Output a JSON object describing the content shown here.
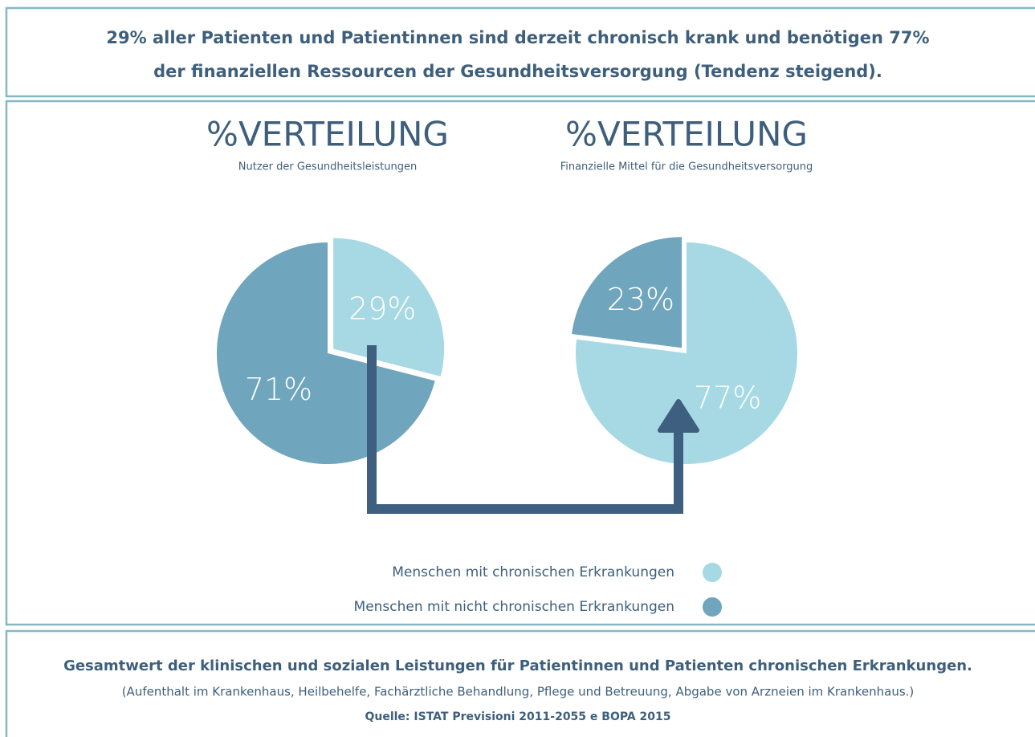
{
  "header": {
    "line1": "29% aller Patienten und Patientinnen sind derzeit chronisch krank und benötigen 77%",
    "line2": "der finanziellen Ressourcen der Gesundheitsversorgung (Tendenz steigend)."
  },
  "chart_data": [
    {
      "type": "pie",
      "title": "%VERTEILUNG",
      "subtitle": "Nutzer der Gesundheitsleistungen",
      "categories": [
        "Menschen mit chronischen Erkrankungen",
        "Menschen mit nicht chronischen Erkrankungen"
      ],
      "values": [
        29,
        71
      ],
      "value_labels": [
        "29%",
        "71%"
      ],
      "colors": [
        "#a6d9e3",
        "#6fa5bd"
      ]
    },
    {
      "type": "pie",
      "title": "%VERTEILUNG",
      "subtitle": "Finanzielle Mittel für die Gesundheitsversorgung",
      "categories": [
        "Menschen mit chronischen Erkrankungen",
        "Menschen mit nicht chronischen Erkrankungen"
      ],
      "values": [
        77,
        23
      ],
      "value_labels": [
        "77%",
        "23%"
      ],
      "colors": [
        "#a6d9e3",
        "#6fa5bd"
      ]
    }
  ],
  "footer": {
    "line1": "Gesamtwert der klinischen und sozialen Leistungen für Patientinnen und Patienten chronischen Erkrankungen.",
    "line2": "(Aufenthalt im Krankenhaus, Heilbehelfe, Fachärztliche Behandlung, Pflege und Betreuung, Abgabe von Arzneien im Krankenhaus.)",
    "source": "Quelle: ISTAT Previsioni 2011-2055 e BOPA 2015"
  }
}
